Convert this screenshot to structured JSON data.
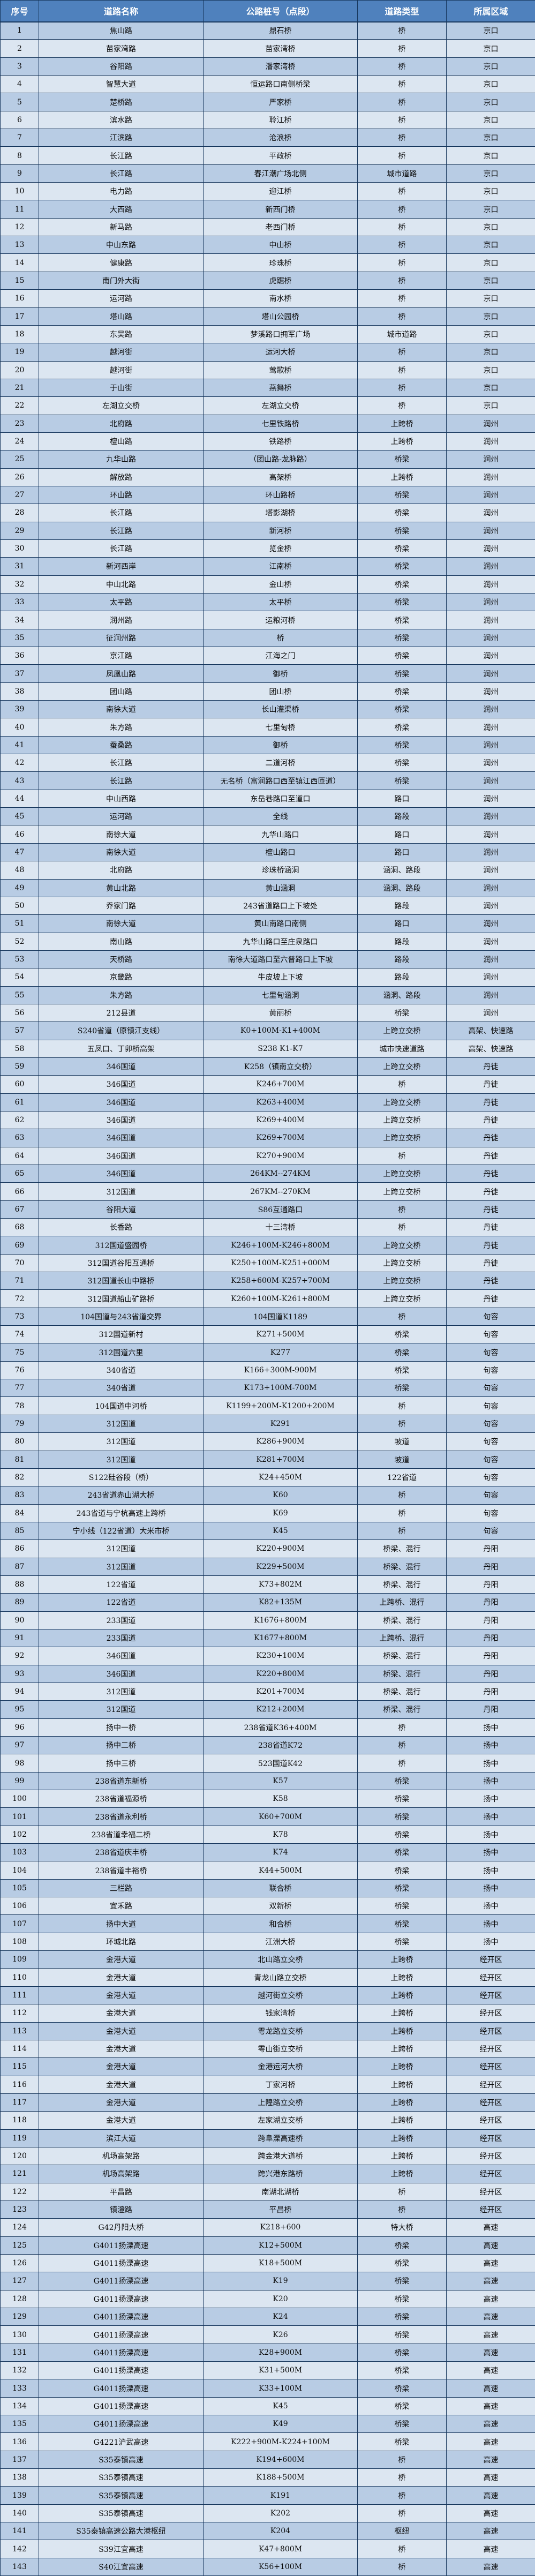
{
  "colors": {
    "header_bg": "#4F81BD",
    "header_text": "#FFFFFF",
    "row_odd_bg": "#B8CCE4",
    "row_even_bg": "#DCE6F1",
    "border": "#16365C",
    "cell_text": "#0A0A0A"
  },
  "table": {
    "headers": [
      "序号",
      "道路名称",
      "公路桩号（点段）",
      "道路类型",
      "所属区域"
    ],
    "rows": [
      [
        1,
        "焦山路",
        "鼎石桥",
        "桥",
        "京口"
      ],
      [
        2,
        "苗家湾路",
        "苗家湾桥",
        "桥",
        "京口"
      ],
      [
        3,
        "谷阳路",
        "潘家湾桥",
        "桥",
        "京口"
      ],
      [
        4,
        "智慧大道",
        "恒运路口南侧桥梁",
        "桥",
        "京口"
      ],
      [
        5,
        "楚桥路",
        "严家桥",
        "桥",
        "京口"
      ],
      [
        6,
        "滨水路",
        "聆江桥",
        "桥",
        "京口"
      ],
      [
        7,
        "江滨路",
        "沧浪桥",
        "桥",
        "京口"
      ],
      [
        8,
        "长江路",
        "平政桥",
        "桥",
        "京口"
      ],
      [
        9,
        "长江路",
        "春江潮广场北侧",
        "城市道路",
        "京口"
      ],
      [
        10,
        "电力路",
        "迎江桥",
        "桥",
        "京口"
      ],
      [
        11,
        "大西路",
        "新西门桥",
        "桥",
        "京口"
      ],
      [
        12,
        "新马路",
        "老西门桥",
        "桥",
        "京口"
      ],
      [
        13,
        "中山东路",
        "中山桥",
        "桥",
        "京口"
      ],
      [
        14,
        "健康路",
        "珍珠桥",
        "桥",
        "京口"
      ],
      [
        15,
        "南门外大街",
        "虎踞桥",
        "桥",
        "京口"
      ],
      [
        16,
        "运河路",
        "南水桥",
        "桥",
        "京口"
      ],
      [
        17,
        "塔山路",
        "塔山公园桥",
        "桥",
        "京口"
      ],
      [
        18,
        "东吴路",
        "梦溪路口拥军广场",
        "城市道路",
        "京口"
      ],
      [
        19,
        "越河街",
        "运河大桥",
        "桥",
        "京口"
      ],
      [
        20,
        "越河街",
        "莺歌桥",
        "桥",
        "京口"
      ],
      [
        21,
        "于山街",
        "燕舞桥",
        "桥",
        "京口"
      ],
      [
        22,
        "左湖立交桥",
        "左湖立交桥",
        "桥",
        "京口"
      ],
      [
        23,
        "北府路",
        "七里铁路桥",
        "上跨桥",
        "润州"
      ],
      [
        24,
        "檀山路",
        "铁路桥",
        "上跨桥",
        "润州"
      ],
      [
        25,
        "九华山路",
        "（团山路-龙脉路）",
        "桥梁",
        "润州"
      ],
      [
        26,
        "解放路",
        "高架桥",
        "上跨桥",
        "润州"
      ],
      [
        27,
        "环山路",
        "环山路桥",
        "桥梁",
        "润州"
      ],
      [
        28,
        "长江路",
        "塔影湖桥",
        "桥梁",
        "润州"
      ],
      [
        29,
        "长江路",
        "新河桥",
        "桥梁",
        "润州"
      ],
      [
        30,
        "长江路",
        "览金桥",
        "桥梁",
        "润州"
      ],
      [
        31,
        "新河西岸",
        "江南桥",
        "桥梁",
        "润州"
      ],
      [
        32,
        "中山北路",
        "金山桥",
        "桥梁",
        "润州"
      ],
      [
        33,
        "太平路",
        "太平桥",
        "桥梁",
        "润州"
      ],
      [
        34,
        "润州路",
        "运粮河桥",
        "桥梁",
        "润州"
      ],
      [
        35,
        "征润州路",
        "桥",
        "桥梁",
        "润州"
      ],
      [
        36,
        "京江路",
        "江海之门",
        "桥梁",
        "润州"
      ],
      [
        37,
        "凤凰山路",
        "御桥",
        "桥梁",
        "润州"
      ],
      [
        38,
        "团山路",
        "团山桥",
        "桥梁",
        "润州"
      ],
      [
        39,
        "南徐大道",
        "长山灌渠桥",
        "桥梁",
        "润州"
      ],
      [
        40,
        "朱方路",
        "七里甸桥",
        "桥梁",
        "润州"
      ],
      [
        41,
        "蚕桑路",
        "御桥",
        "桥梁",
        "润州"
      ],
      [
        42,
        "长江路",
        "二道河桥",
        "桥梁",
        "润州"
      ],
      [
        43,
        "长江路",
        "无名桥（富润路口西至镇江西匝道）",
        "桥梁",
        "润州"
      ],
      [
        44,
        "中山西路",
        "东岳巷路口至道口",
        "路口",
        "润州"
      ],
      [
        45,
        "运河路",
        "全线",
        "路段",
        "润州"
      ],
      [
        46,
        "南徐大道",
        "九华山路口",
        "路口",
        "润州"
      ],
      [
        47,
        "南徐大道",
        "檀山路口",
        "路口",
        "润州"
      ],
      [
        48,
        "北府路",
        "珍珠桥涵洞",
        "涵洞、路段",
        "润州"
      ],
      [
        49,
        "黄山北路",
        "黄山涵洞",
        "涵洞、路段",
        "润州"
      ],
      [
        50,
        "乔家门路",
        "243省道路口上下坡处",
        "路段",
        "润州"
      ],
      [
        51,
        "南徐大道",
        "黄山南路口南侧",
        "路口",
        "润州"
      ],
      [
        52,
        "南山路",
        "九华山路口至庄泉路口",
        "路段",
        "润州"
      ],
      [
        53,
        "天桥路",
        "南徐大道路口至六普路口上下坡",
        "路段",
        "润州"
      ],
      [
        54,
        "京畿路",
        "牛皮坡上下坡",
        "路段",
        "润州"
      ],
      [
        55,
        "朱方路",
        "七里甸涵洞",
        "涵洞、路段",
        "润州"
      ],
      [
        56,
        "212县道",
        "黄丽桥",
        "桥梁",
        "润州"
      ],
      [
        57,
        "S240省道（原镇江支线）",
        "K0+100M-K1+400M",
        "上跨立交桥",
        "高架、快速路"
      ],
      [
        58,
        "五凤口、丁卯桥高架",
        "S238 K1-K7",
        "城市快速道路",
        "高架、快速路"
      ],
      [
        59,
        "346国道",
        "K258（镇南立交桥）",
        "上跨立交桥",
        "丹徒"
      ],
      [
        60,
        "346国道",
        "K246+700M",
        "桥",
        "丹徒"
      ],
      [
        61,
        "346国道",
        "K263+400M",
        "上跨立交桥",
        "丹徒"
      ],
      [
        62,
        "346国道",
        "K269+400M",
        "上跨立交桥",
        "丹徒"
      ],
      [
        63,
        "346国道",
        "K269+700M",
        "上跨立交桥",
        "丹徒"
      ],
      [
        64,
        "346国道",
        "K270+900M",
        "桥",
        "丹徒"
      ],
      [
        65,
        "346国道",
        "264KM--274KM",
        "上跨立交桥",
        "丹徒"
      ],
      [
        66,
        "312国道",
        "267KM--270KM",
        "上跨立交桥",
        "丹徒"
      ],
      [
        67,
        "谷阳大道",
        "S86互通路口",
        "桥",
        "丹徒"
      ],
      [
        68,
        "长香路",
        "十三湾桥",
        "桥",
        "丹徒"
      ],
      [
        69,
        "312国道盛园桥",
        "K246+100M-K246+800M",
        "上跨立交桥",
        "丹徒"
      ],
      [
        70,
        "312国道谷阳互通桥",
        "K250+100M-K251+000M",
        "上跨立交桥",
        "丹徒"
      ],
      [
        71,
        "312国道长山中路桥",
        "K258+600M-K257+700M",
        "上跨立交桥",
        "丹徒"
      ],
      [
        72,
        "312国道船山矿路桥",
        "K260+100M-K261+800M",
        "上跨立交桥",
        "丹徒"
      ],
      [
        73,
        "104国道与243省道交界",
        "104国道K1189",
        "桥",
        "句容"
      ],
      [
        74,
        "312国道新村",
        "K271+500M",
        "桥梁",
        "句容"
      ],
      [
        75,
        "312国道六里",
        "K277",
        "桥梁",
        "句容"
      ],
      [
        76,
        "340省道",
        "K166+300M-900M",
        "桥梁",
        "句容"
      ],
      [
        77,
        "340省道",
        "K173+100M-700M",
        "桥梁",
        "句容"
      ],
      [
        78,
        "104国道中河桥",
        "K1199+200M-K1200+200M",
        "桥",
        "句容"
      ],
      [
        79,
        "312国道",
        "K291",
        "桥",
        "句容"
      ],
      [
        80,
        "312国道",
        "K286+900M",
        "坡道",
        "句容"
      ],
      [
        81,
        "312国道",
        "K281+700M",
        "坡道",
        "句容"
      ],
      [
        82,
        "S122硅谷段（桥）",
        "K24+450M",
        "122省道",
        "句容"
      ],
      [
        83,
        "243省道赤山湖大桥",
        "K60",
        "桥",
        "句容"
      ],
      [
        84,
        "243省道与宁杭高速上跨桥",
        "K69",
        "桥",
        "句容"
      ],
      [
        85,
        "宁小线（122省道）大米市桥",
        "K45",
        "桥",
        "句容"
      ],
      [
        86,
        "312国道",
        "K220+900M",
        "桥梁、混行",
        "丹阳"
      ],
      [
        87,
        "312国道",
        "K229+500M",
        "桥梁、混行",
        "丹阳"
      ],
      [
        88,
        "122省道",
        "K73+802M",
        "桥梁、混行",
        "丹阳"
      ],
      [
        89,
        "122省道",
        "K82+135M",
        "上跨桥、混行",
        "丹阳"
      ],
      [
        90,
        "233国道",
        "K1676+800M",
        "桥梁、混行",
        "丹阳"
      ],
      [
        91,
        "233国道",
        "K1677+800M",
        "上跨桥、混行",
        "丹阳"
      ],
      [
        92,
        "346国道",
        "K230+100M",
        "桥梁、混行",
        "丹阳"
      ],
      [
        93,
        "346国道",
        "K220+800M",
        "桥梁、混行",
        "丹阳"
      ],
      [
        94,
        "312国道",
        "K201+700M",
        "桥梁、混行",
        "丹阳"
      ],
      [
        95,
        "312国道",
        "K212+200M",
        "桥梁、混行",
        "丹阳"
      ],
      [
        96,
        "扬中一桥",
        "238省道K36+400M",
        "桥",
        "扬中"
      ],
      [
        97,
        "扬中二桥",
        "238省道K72",
        "桥",
        "扬中"
      ],
      [
        98,
        "扬中三桥",
        "523国道K42",
        "桥",
        "扬中"
      ],
      [
        99,
        "238省道东新桥",
        "K57",
        "桥梁",
        "扬中"
      ],
      [
        100,
        "238省道福源桥",
        "K58",
        "桥梁",
        "扬中"
      ],
      [
        101,
        "238省道永利桥",
        "K60+700M",
        "桥梁",
        "扬中"
      ],
      [
        102,
        "238省道幸福二桥",
        "K78",
        "桥梁",
        "扬中"
      ],
      [
        103,
        "238省道庆丰桥",
        "K74",
        "桥梁",
        "扬中"
      ],
      [
        104,
        "238省道丰裕桥",
        "K44+500M",
        "桥梁",
        "扬中"
      ],
      [
        105,
        "三栏路",
        "联合桥",
        "桥梁",
        "扬中"
      ],
      [
        106,
        "宜禾路",
        "双新桥",
        "桥梁",
        "扬中"
      ],
      [
        107,
        "扬中大道",
        "和合桥",
        "桥梁",
        "扬中"
      ],
      [
        108,
        "环城北路",
        "江洲大桥",
        "桥梁",
        "扬中"
      ],
      [
        109,
        "金港大道",
        "北山路立交桥",
        "上跨桥",
        "经开区"
      ],
      [
        110,
        "金港大道",
        "青龙山路立交桥",
        "上跨桥",
        "经开区"
      ],
      [
        111,
        "金港大道",
        "越河街立交桥",
        "上跨桥",
        "经开区"
      ],
      [
        112,
        "金港大道",
        "钱家湾桥",
        "上跨桥",
        "经开区"
      ],
      [
        113,
        "金港大道",
        "雩龙路立交桥",
        "上跨桥",
        "经开区"
      ],
      [
        114,
        "金港大道",
        "雩山街立交桥",
        "上跨桥",
        "经开区"
      ],
      [
        115,
        "金港大道",
        "金港运河大桥",
        "上跨桥",
        "经开区"
      ],
      [
        116,
        "金港大道",
        "丁家河桥",
        "上跨桥",
        "经开区"
      ],
      [
        117,
        "金港大道",
        "上隍路立交桥",
        "上跨桥",
        "经开区"
      ],
      [
        118,
        "金港大道",
        "左家湖立交桥",
        "上跨桥",
        "经开区"
      ],
      [
        119,
        "滨江大道",
        "跨阜溧高速桥",
        "上跨桥",
        "经开区"
      ],
      [
        120,
        "机场高架路",
        "跨金港大道桥",
        "上跨桥",
        "经开区"
      ],
      [
        121,
        "机场高架路",
        "跨兴港东路桥",
        "上跨桥",
        "经开区"
      ],
      [
        122,
        "平昌路",
        "南湖北湖桥",
        "桥",
        "经开区"
      ],
      [
        123,
        "镇澄路",
        "平昌桥",
        "桥",
        "经开区"
      ],
      [
        124,
        "G42丹阳大桥",
        "K218+600",
        "特大桥",
        "高速"
      ],
      [
        125,
        "G4011扬溧高速",
        "K12+500M",
        "桥梁",
        "高速"
      ],
      [
        126,
        "G4011扬溧高速",
        "K18+500M",
        "桥梁",
        "高速"
      ],
      [
        127,
        "G4011扬溧高速",
        "K19",
        "桥梁",
        "高速"
      ],
      [
        128,
        "G4011扬溧高速",
        "K20",
        "桥梁",
        "高速"
      ],
      [
        129,
        "G4011扬溧高速",
        "K24",
        "桥梁",
        "高速"
      ],
      [
        130,
        "G4011扬溧高速",
        "K26",
        "桥梁",
        "高速"
      ],
      [
        131,
        "G4011扬溧高速",
        "K28+900M",
        "桥梁",
        "高速"
      ],
      [
        132,
        "G4011扬溧高速",
        "K31+500M",
        "桥梁",
        "高速"
      ],
      [
        133,
        "G4011扬溧高速",
        "K33+100M",
        "桥梁",
        "高速"
      ],
      [
        134,
        "G4011扬溧高速",
        "K45",
        "桥梁",
        "高速"
      ],
      [
        135,
        "G4011扬溧高速",
        "K49",
        "桥梁",
        "高速"
      ],
      [
        136,
        "G4221沪武高速",
        "K222+900M-K224+100M",
        "桥梁",
        "高速"
      ],
      [
        137,
        "S35泰镇高速",
        "K194+600M",
        "桥",
        "高速"
      ],
      [
        138,
        "S35泰镇高速",
        "K188+500M",
        "桥",
        "高速"
      ],
      [
        139,
        "S35泰镇高速",
        "K191",
        "桥",
        "高速"
      ],
      [
        140,
        "S35泰镇高速",
        "K202",
        "桥",
        "高速"
      ],
      [
        141,
        "S35泰镇高速公路大港枢纽",
        "K204",
        "枢纽",
        "高速"
      ],
      [
        142,
        "S39江宜高速",
        "K47+800M",
        "桥",
        "高速"
      ],
      [
        143,
        "S40江宜高速",
        "K56+100M",
        "桥",
        "高速"
      ]
    ]
  }
}
